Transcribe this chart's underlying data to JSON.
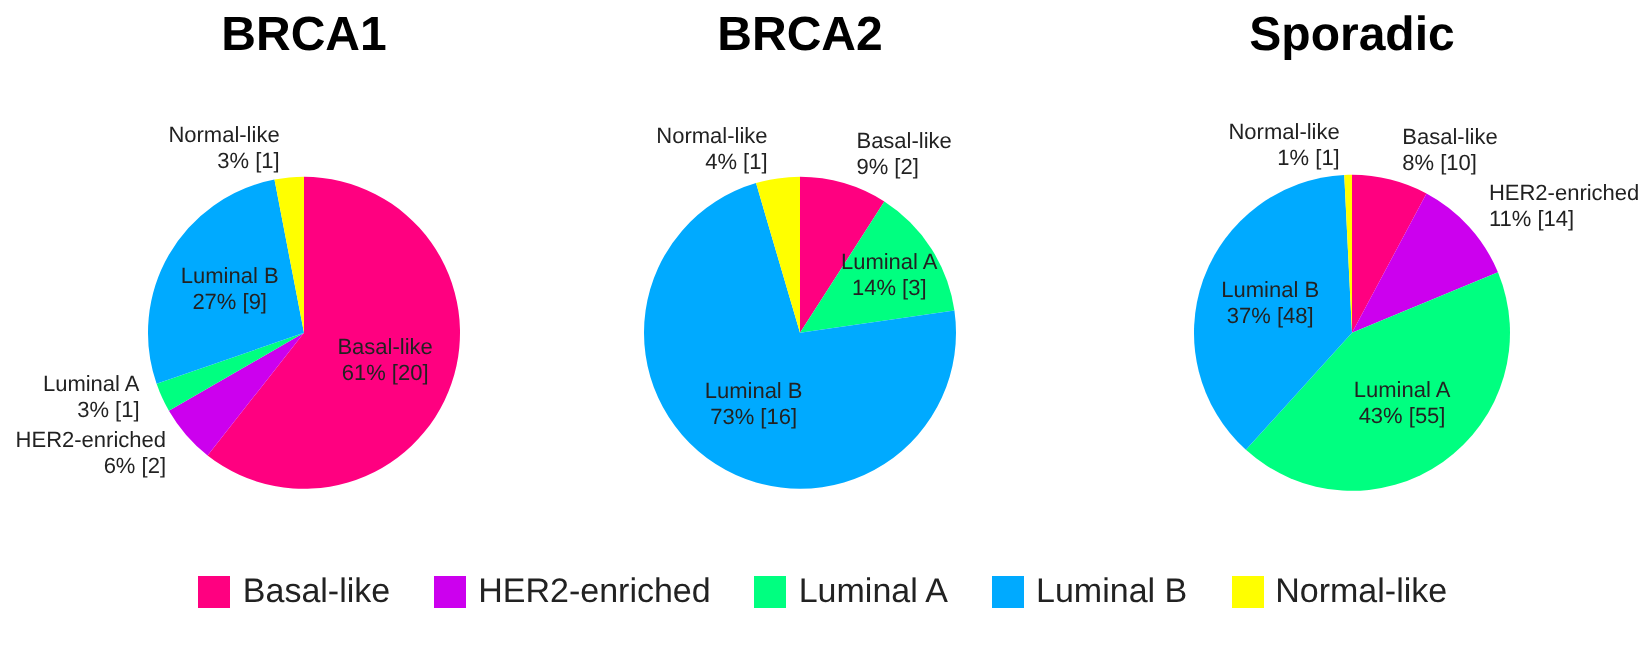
{
  "chart_data": [
    {
      "type": "pie",
      "title": "BRCA1",
      "categories": [
        "Basal-like",
        "HER2-enriched",
        "Luminal A",
        "Luminal B",
        "Normal-like"
      ],
      "values": [
        20,
        2,
        1,
        9,
        1
      ],
      "colors": [
        "#ff0080",
        "#cc00ee",
        "#00ff80",
        "#00aaff",
        "#ffff00"
      ],
      "value_labels": [
        "61% [20]",
        "6% [2]",
        "3% [1]",
        "27% [9]",
        "3% [1]"
      ],
      "legend": "bottom"
    },
    {
      "type": "pie",
      "title": "BRCA2",
      "categories": [
        "Basal-like",
        "Luminal A",
        "Luminal B",
        "Normal-like"
      ],
      "values": [
        2,
        3,
        16,
        1
      ],
      "colors": [
        "#ff0080",
        "#00ff80",
        "#00aaff",
        "#ffff00"
      ],
      "value_labels": [
        "9% [2]",
        "14% [3]",
        "73% [16]",
        "4% [1]"
      ]
    },
    {
      "type": "pie",
      "title": "Sporadic",
      "categories": [
        "Basal-like",
        "HER2-enriched",
        "Luminal A",
        "Luminal B",
        "Normal-like"
      ],
      "values": [
        10,
        14,
        55,
        48,
        1
      ],
      "colors": [
        "#ff0080",
        "#cc00ee",
        "#00ff80",
        "#00aaff",
        "#ffff00"
      ],
      "value_labels": [
        "8% [10]",
        "11% [14]",
        "43% [55]",
        "37% [48]",
        "1% [1]"
      ]
    }
  ]
}
